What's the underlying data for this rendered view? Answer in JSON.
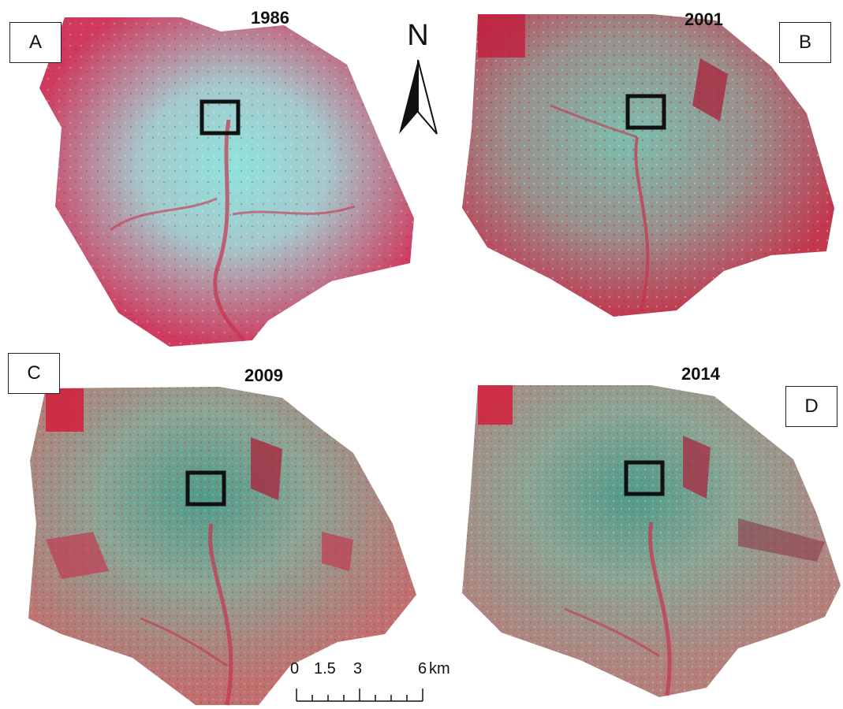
{
  "panels": [
    {
      "letter": "A",
      "year": "1986"
    },
    {
      "letter": "B",
      "year": "2001"
    },
    {
      "letter": "C",
      "year": "2009"
    },
    {
      "letter": "D",
      "year": "2014"
    }
  ],
  "north_arrow": {
    "label": "N"
  },
  "scale_bar": {
    "labels": [
      "0",
      "1.5",
      "3",
      "6"
    ],
    "unit": "km"
  },
  "colors": {
    "vegetation_red": "#c8324f",
    "urban_cyan": "#7fd6cf",
    "mixed_green": "#7aa392",
    "deep_red": "#a8283f"
  }
}
